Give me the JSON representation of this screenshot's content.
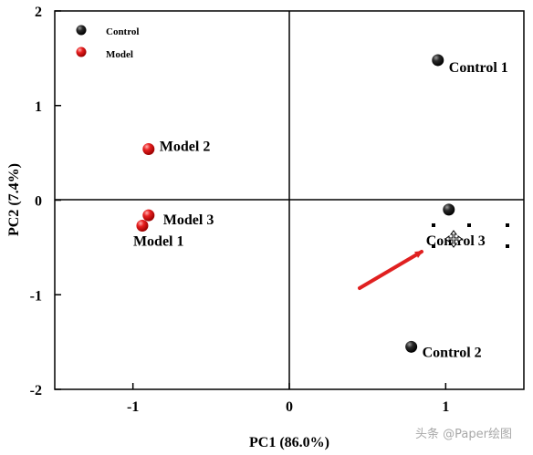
{
  "chart_data": {
    "type": "scatter",
    "title": "",
    "xlabel": "PC1 (86.0%)",
    "ylabel": "PC2 (7.4%)",
    "xlim": [
      -1.5,
      1.5
    ],
    "ylim": [
      -2,
      2
    ],
    "xticks": [
      -1,
      0,
      1
    ],
    "yticks": [
      -2,
      -1,
      0,
      1,
      2
    ],
    "grid": false,
    "zero_lines": true,
    "legend_position": "top-left",
    "series": [
      {
        "name": "Control",
        "color": "#111111",
        "points": [
          {
            "x": 0.95,
            "y": 1.48,
            "label": "Control 1"
          },
          {
            "x": 0.78,
            "y": -1.55,
            "label": "Control 2"
          },
          {
            "x": 1.02,
            "y": -0.1,
            "label": "Control 3"
          }
        ]
      },
      {
        "name": "Model",
        "color": "#e82020",
        "points": [
          {
            "x": -0.94,
            "y": -0.27,
            "label": "Model 1"
          },
          {
            "x": -0.9,
            "y": 0.54,
            "label": "Model 2"
          },
          {
            "x": -0.9,
            "y": -0.16,
            "label": "Model 3"
          }
        ]
      }
    ],
    "annotation_arrow_color": "#e02020"
  },
  "watermark": {
    "text": "头条 @Paper绘图"
  }
}
